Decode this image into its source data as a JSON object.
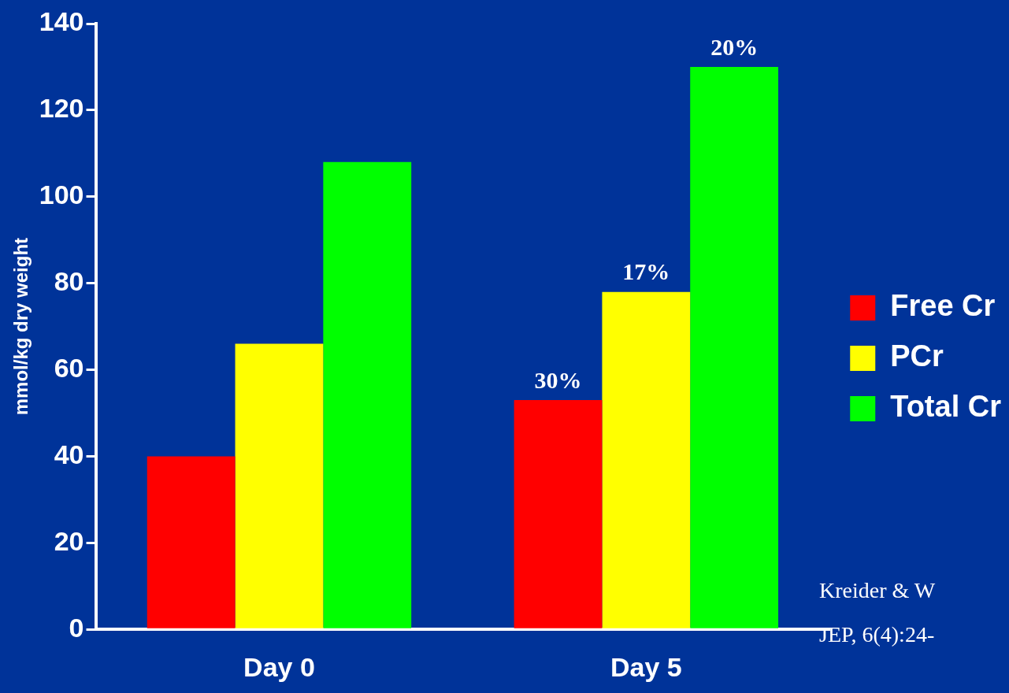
{
  "chart_data": {
    "type": "bar",
    "ylabel": "mmol/kg dry weight",
    "categories": [
      "Day 0",
      "Day 5"
    ],
    "series": [
      {
        "name": "Free Cr",
        "color": "#ff0000",
        "values": [
          40,
          53
        ]
      },
      {
        "name": "PCr",
        "color": "#ffff00",
        "values": [
          66,
          78
        ]
      },
      {
        "name": "Total Cr",
        "color": "#00ff00",
        "values": [
          108,
          130
        ]
      }
    ],
    "ylim": [
      0,
      140
    ],
    "yticks": [
      0,
      20,
      40,
      60,
      80,
      100,
      120,
      140
    ],
    "grid": false,
    "legend": "right",
    "annotations": [
      "30%",
      "17%",
      "20%",
      "Kreider & W",
      "JEP, 6(4):24-"
    ]
  }
}
